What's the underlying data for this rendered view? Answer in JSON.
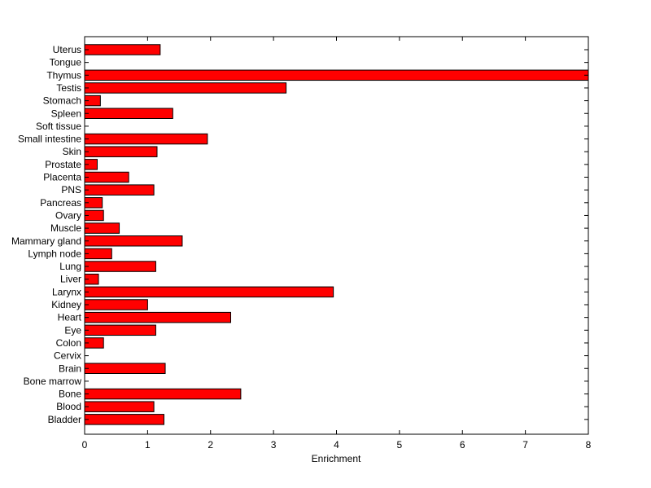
{
  "chart_data": {
    "type": "bar",
    "orientation": "horizontal",
    "categories": [
      "Uterus",
      "Tongue",
      "Thymus",
      "Testis",
      "Stomach",
      "Spleen",
      "Soft tissue",
      "Small intestine",
      "Skin",
      "Prostate",
      "Placenta",
      "PNS",
      "Pancreas",
      "Ovary",
      "Muscle",
      "Mammary gland",
      "Lymph node",
      "Lung",
      "Liver",
      "Larynx",
      "Kidney",
      "Heart",
      "Eye",
      "Colon",
      "Cervix",
      "Brain",
      "Bone marrow",
      "Bone",
      "Blood",
      "Bladder"
    ],
    "values": [
      1.2,
      0,
      8.0,
      3.2,
      0.25,
      1.4,
      0,
      1.95,
      1.15,
      0.2,
      0.7,
      1.1,
      0.28,
      0.3,
      0.55,
      1.55,
      0.43,
      1.13,
      0.22,
      3.95,
      1.0,
      2.32,
      1.13,
      0.3,
      0,
      1.28,
      0,
      2.48,
      1.1,
      1.26
    ],
    "xlabel": "Enrichment",
    "xlim": [
      0,
      8
    ],
    "xticks": [
      0,
      1,
      2,
      3,
      4,
      5,
      6,
      7,
      8
    ],
    "grid": false,
    "colors": {
      "bar_fill": "#ff0000",
      "bar_edge": "#000000",
      "axes": "#000000"
    }
  }
}
